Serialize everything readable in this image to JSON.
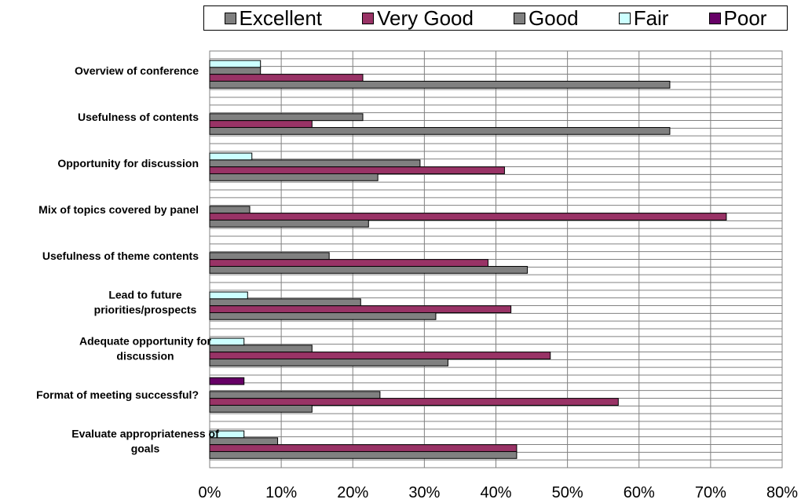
{
  "chart_data": {
    "type": "bar",
    "orientation": "horizontal",
    "title": "",
    "xlabel": "",
    "ylabel": "",
    "xlim": [
      0,
      80
    ],
    "x_ticks": [
      "0%",
      "10%",
      "20%",
      "30%",
      "40%",
      "50%",
      "60%",
      "70%",
      "80%"
    ],
    "grid": true,
    "legend_position": "top",
    "categories": [
      [
        "Overview of conference"
      ],
      [
        "Usefulness of contents"
      ],
      [
        "Opportunity for discussion"
      ],
      [
        "Mix of topics covered by panel"
      ],
      [
        "Usefulness of theme contents"
      ],
      [
        "Lead to future",
        "priorities/prospects"
      ],
      [
        "Adequate opportunity for",
        "discussion"
      ],
      [
        "Format of meeting successful?"
      ],
      [
        "Evaluate appropriateness of",
        "goals"
      ]
    ],
    "series": [
      {
        "name": "Excellent",
        "color": "#808080",
        "values": [
          64.3,
          64.3,
          23.5,
          22.2,
          44.4,
          31.6,
          33.3,
          14.3,
          42.9
        ]
      },
      {
        "name": "Very Good",
        "color": "#993366",
        "values": [
          21.4,
          14.3,
          41.2,
          72.2,
          38.9,
          42.1,
          47.6,
          57.1,
          42.9
        ]
      },
      {
        "name": "Good",
        "color": "#808080",
        "values": [
          7.1,
          21.4,
          29.4,
          5.6,
          16.7,
          21.1,
          14.3,
          23.8,
          9.5
        ]
      },
      {
        "name": "Fair",
        "color": "#CCFFFF",
        "values": [
          7.1,
          0,
          5.9,
          0,
          0,
          5.3,
          4.8,
          0,
          4.8
        ]
      },
      {
        "name": "Poor",
        "color": "#660066",
        "values": [
          0,
          0,
          0,
          0,
          0,
          0,
          0,
          4.8,
          0
        ]
      }
    ]
  }
}
